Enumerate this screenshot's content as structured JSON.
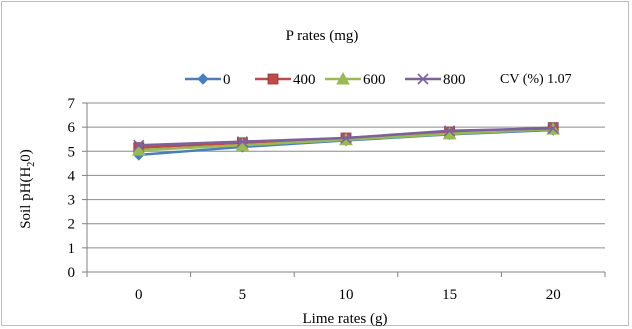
{
  "chart_data": {
    "type": "line",
    "title": "P rates (mg)",
    "xlabel": "Lime rates (g)",
    "ylabel": "Soil pH(H",
    "ylabel_sub": "2",
    "ylabel_end": "0)",
    "annotation": "CV (%) 1.07",
    "categories": [
      "0",
      "5",
      "10",
      "15",
      "20"
    ],
    "ylim": [
      0,
      7
    ],
    "yticks": [
      "0",
      "1",
      "2",
      "3",
      "4",
      "5",
      "6",
      "7"
    ],
    "grid": true,
    "legend_position": "top",
    "series": [
      {
        "name": "0",
        "color": "#4a7ebb",
        "marker": "diamond",
        "values": [
          4.85,
          5.18,
          5.45,
          5.7,
          5.88
        ]
      },
      {
        "name": "400",
        "color": "#be4b48",
        "marker": "square",
        "values": [
          5.15,
          5.35,
          5.55,
          5.8,
          5.98
        ]
      },
      {
        "name": "600",
        "color": "#98b954",
        "marker": "triangle",
        "values": [
          5.05,
          5.25,
          5.48,
          5.72,
          5.92
        ]
      },
      {
        "name": "800",
        "color": "#7d60a0",
        "marker": "x",
        "values": [
          5.25,
          5.4,
          5.55,
          5.85,
          5.95
        ]
      }
    ]
  }
}
